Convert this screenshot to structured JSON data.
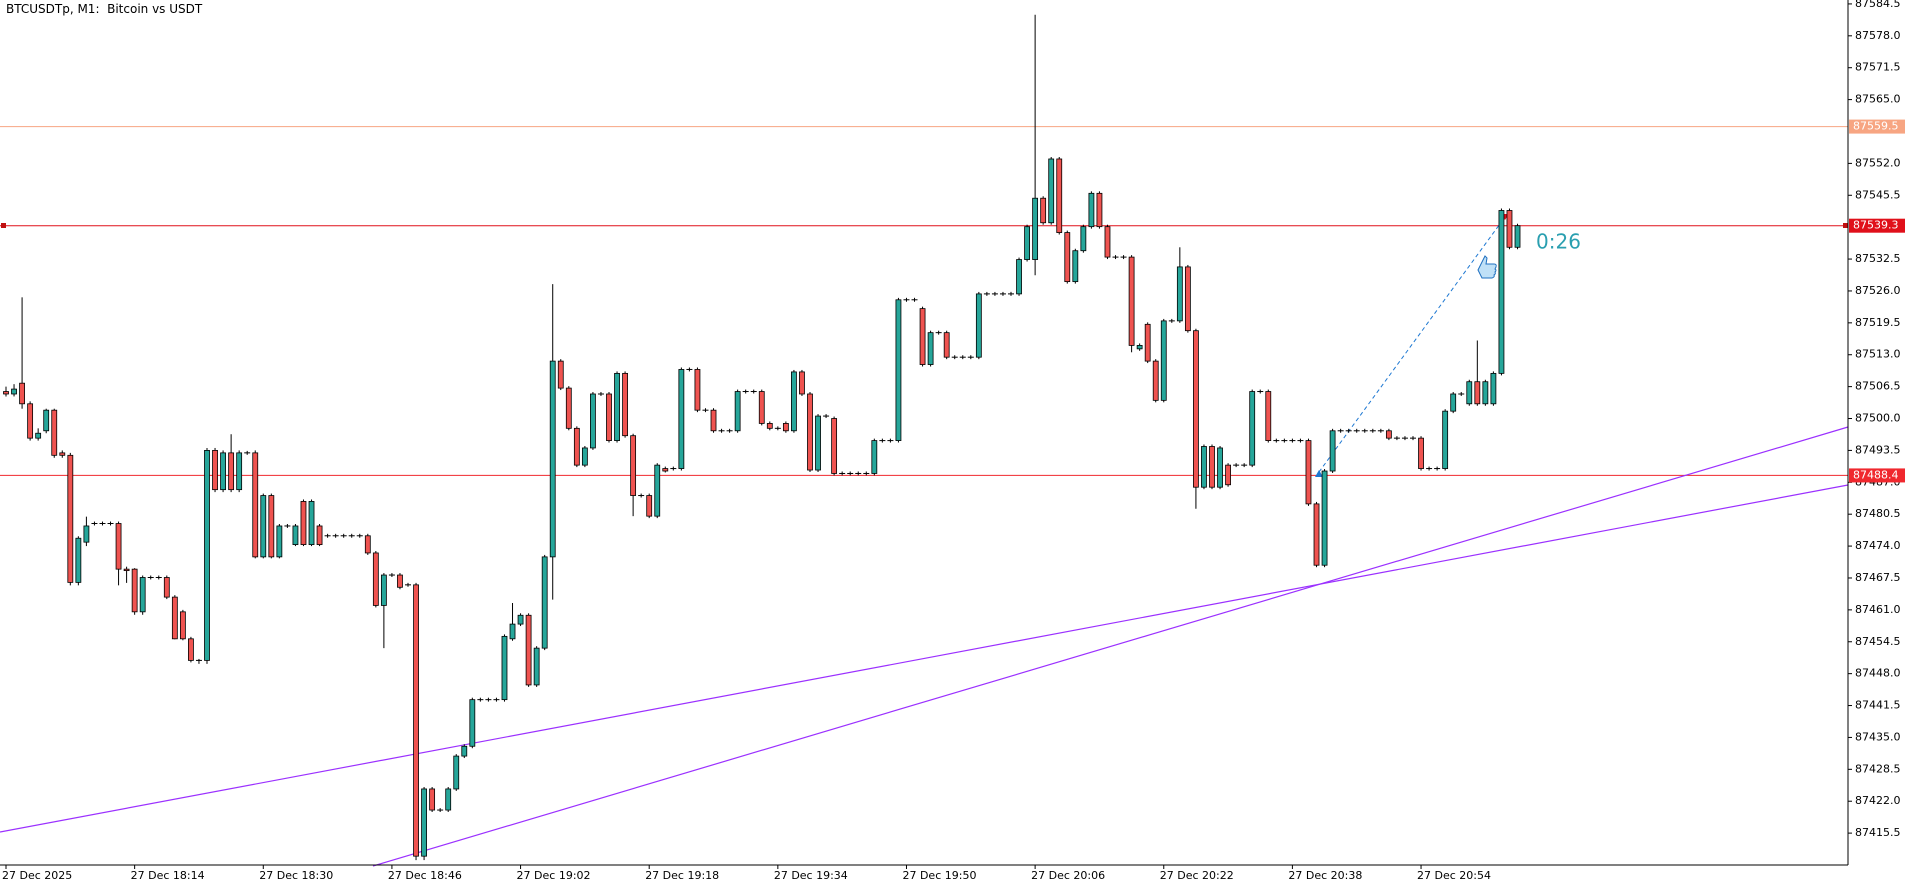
{
  "chart_data": {
    "type": "candlestick",
    "title": "BTCUSDTp, M1:  Bitcoin vs USDT",
    "up_color": "#26a69a",
    "down_color": "#ef5350",
    "countdown": "0:26",
    "ylim": [
      87409.0,
      87585.3
    ],
    "yticks": [
      87584.5,
      {
        "value": 87578.0,
        "label": "87578.0"
      },
      87571.5,
      {
        "value": 87565.0,
        "label": "87565.0"
      },
      {
        "value": 87552.0,
        "label": "87552.0"
      },
      87545.5,
      87532.5,
      {
        "value": 87526.0,
        "label": "87526.0"
      },
      87519.5,
      {
        "value": 87513.0,
        "label": "87513.0"
      },
      87506.5,
      {
        "value": 87500.0,
        "label": "87500.0"
      },
      87493.5,
      {
        "value": 87487.0,
        "label": "87487.0"
      },
      87480.5,
      {
        "value": 87474.0,
        "label": "87474.0"
      },
      87467.5,
      {
        "value": 87461.0,
        "label": "87461.0"
      },
      87454.5,
      {
        "value": 87448.0,
        "label": "87448.0"
      },
      87441.5,
      {
        "value": 87435.0,
        "label": "87435.0"
      },
      87428.5,
      {
        "value": 87422.0,
        "label": "87422.0"
      },
      87415.5
    ],
    "price_lines": [
      {
        "value": 87559.5,
        "color": "#f7a582"
      },
      {
        "value": 87539.3,
        "color": "#e0101a"
      },
      {
        "value": 87488.4,
        "color": "#f0282e"
      }
    ],
    "categories": [
      "27 Dec 2025",
      null,
      null,
      null,
      null,
      null,
      null,
      null,
      null,
      null,
      null,
      null,
      null,
      null,
      null,
      null,
      "27 Dec 18:14",
      null,
      null,
      null,
      null,
      null,
      null,
      null,
      null,
      null,
      null,
      null,
      null,
      null,
      null,
      null,
      "27 Dec 18:30",
      null,
      null,
      null,
      null,
      null,
      null,
      null,
      null,
      null,
      null,
      null,
      null,
      null,
      null,
      null,
      "27 Dec 18:46",
      null,
      null,
      null,
      null,
      null,
      null,
      null,
      null,
      null,
      null,
      null,
      null,
      null,
      null,
      null,
      "27 Dec 19:02",
      null,
      null,
      null,
      null,
      null,
      null,
      null,
      null,
      null,
      null,
      null,
      null,
      null,
      null,
      null,
      "27 Dec 19:18",
      null,
      null,
      null,
      null,
      null,
      null,
      null,
      null,
      null,
      null,
      null,
      null,
      null,
      null,
      null,
      "27 Dec 19:34",
      null,
      null,
      null,
      null,
      null,
      null,
      null,
      null,
      null,
      null,
      null,
      null,
      null,
      null,
      null,
      "27 Dec 19:50",
      null,
      null,
      null,
      null,
      null,
      null,
      null,
      null,
      null,
      null,
      null,
      null,
      null,
      null,
      null,
      "27 Dec 20:06",
      null,
      null,
      null,
      null,
      null,
      null,
      null,
      null,
      null,
      null,
      null,
      null,
      null,
      null,
      null,
      "27 Dec 20:22",
      null,
      null,
      null,
      null,
      null,
      null,
      null,
      null,
      null,
      null,
      null,
      null,
      null,
      null,
      null,
      "27 Dec 20:38",
      null,
      null,
      null,
      null,
      null,
      null,
      null,
      null,
      null,
      null,
      null,
      null,
      null,
      null,
      null,
      "27 Dec 20:54",
      null,
      null,
      null,
      null,
      null,
      null,
      null,
      null,
      null,
      null,
      null,
      null
    ],
    "values": [
      [
        87505.5,
        87506.5,
        87504.5,
        87505.0
      ],
      [
        87505.0,
        87507.0,
        87504.5,
        87506.0
      ],
      [
        87507.2,
        87524.7,
        87502.0,
        87503.0
      ],
      [
        87503.0,
        87503.5,
        87495.5,
        87496.0
      ],
      [
        87496.0,
        87498.0,
        87495.5,
        87497.0
      ],
      [
        87497.5,
        87502.0,
        87497.0,
        87501.7
      ],
      [
        87501.7,
        87502.0,
        87492.0,
        87492.5
      ],
      [
        87493.0,
        87493.5,
        87492.0,
        87492.5
      ],
      [
        87492.5,
        87493.0,
        87466.0,
        87466.6
      ],
      [
        87466.6,
        87476.0,
        87466.0,
        87475.6
      ],
      [
        87474.8,
        87480.0,
        87474.0,
        87478.1
      ],
      [
        87478.6,
        87479.0,
        87478.2,
        87478.6
      ],
      [
        87478.6,
        87479.0,
        87478.2,
        87478.6
      ],
      [
        87478.6,
        87479.0,
        87478.2,
        87478.6
      ],
      [
        87478.6,
        87479.0,
        87466.0,
        87469.3
      ],
      [
        87469.3,
        87469.8,
        87466.5,
        87469.0
      ],
      [
        87469.3,
        87469.5,
        87460.0,
        87460.6
      ],
      [
        87460.6,
        87468.0,
        87460.0,
        87467.6
      ],
      [
        87467.6,
        87468.0,
        87467.2,
        87467.6
      ],
      [
        87467.6,
        87468.0,
        87467.2,
        87467.6
      ],
      [
        87467.6,
        87468.0,
        87463.2,
        87463.6
      ],
      [
        87463.6,
        87464.0,
        87455.0,
        87455.1
      ],
      [
        87460.6,
        87461.0,
        87454.8,
        87455.1
      ],
      [
        87455.1,
        87455.5,
        87450.3,
        87450.7
      ],
      [
        87450.7,
        87451.0,
        87450.0,
        87450.7
      ],
      [
        87450.7,
        87494.0,
        87450.0,
        87493.5
      ],
      [
        87493.5,
        87494.0,
        87485.0,
        87485.5
      ],
      [
        87485.5,
        87493.5,
        87485.0,
        87493.0
      ],
      [
        87493.0,
        87496.8,
        87485.0,
        87485.5
      ],
      [
        87485.5,
        87493.5,
        87485.0,
        87493.0
      ],
      [
        87493.0,
        87493.4,
        87492.6,
        87493.0
      ],
      [
        87493.0,
        87493.5,
        87471.5,
        87471.8
      ],
      [
        87471.8,
        87484.7,
        87471.5,
        87484.3
      ],
      [
        87484.3,
        87484.7,
        87471.5,
        87471.8
      ],
      [
        87471.8,
        87478.5,
        87471.5,
        87478.1
      ],
      [
        87478.1,
        87478.5,
        87477.7,
        87478.1
      ],
      [
        87474.3,
        87478.5,
        87474.0,
        87478.1
      ],
      [
        87483.1,
        87483.5,
        87474.0,
        87474.3
      ],
      [
        87474.3,
        87483.5,
        87474.0,
        87483.1
      ],
      [
        87478.1,
        87478.5,
        87474.0,
        87474.3
      ],
      [
        87476.1,
        87476.5,
        87475.7,
        87476.1
      ],
      [
        87476.1,
        87476.5,
        87475.7,
        87476.1
      ],
      [
        87476.1,
        87476.5,
        87475.7,
        87476.1
      ],
      [
        87476.1,
        87476.5,
        87475.7,
        87476.1
      ],
      [
        87476.1,
        87476.5,
        87475.7,
        87476.1
      ],
      [
        87476.1,
        87476.5,
        87472.2,
        87472.6
      ],
      [
        87472.6,
        87473.0,
        87461.5,
        87461.9
      ],
      [
        87461.9,
        87468.5,
        87453.2,
        87468.1
      ],
      [
        87468.1,
        87468.5,
        87467.7,
        87468.1
      ],
      [
        87468.1,
        87468.5,
        87465.2,
        87465.6
      ],
      [
        87466.1,
        87466.5,
        87465.7,
        87466.1
      ],
      [
        87466.1,
        87466.5,
        87410.0,
        87410.8
      ],
      [
        87410.8,
        87424.9,
        87410.0,
        87424.5
      ],
      [
        87424.5,
        87424.9,
        87419.8,
        87420.2
      ],
      [
        87420.2,
        87420.6,
        87419.8,
        87420.2
      ],
      [
        87420.2,
        87424.9,
        87419.8,
        87424.5
      ],
      [
        87424.5,
        87431.6,
        87424.1,
        87431.2
      ],
      [
        87431.2,
        87433.6,
        87430.8,
        87433.2
      ],
      [
        87433.2,
        87443.1,
        87432.8,
        87442.7
      ],
      [
        87442.7,
        87443.1,
        87442.3,
        87442.7
      ],
      [
        87442.7,
        87443.1,
        87442.3,
        87442.7
      ],
      [
        87442.7,
        87443.1,
        87442.3,
        87442.7
      ],
      [
        87442.7,
        87456.0,
        87442.3,
        87455.6
      ],
      [
        87455.1,
        87462.4,
        87454.7,
        87458.1
      ],
      [
        87458.1,
        87460.3,
        87457.7,
        87459.9
      ],
      [
        87459.9,
        87460.3,
        87445.3,
        87445.7
      ],
      [
        87445.7,
        87453.6,
        87445.3,
        87453.2
      ],
      [
        87453.2,
        87472.2,
        87452.8,
        87471.8
      ],
      [
        87471.8,
        87527.4,
        87463.1,
        87511.7
      ],
      [
        87511.7,
        87512.1,
        87505.8,
        87506.2
      ],
      [
        87506.2,
        87506.6,
        87497.6,
        87498.0
      ],
      [
        87498.0,
        87498.4,
        87490.1,
        87490.5
      ],
      [
        87490.5,
        87494.4,
        87490.1,
        87494.0
      ],
      [
        87494.0,
        87505.4,
        87493.6,
        87505.0
      ],
      [
        87505.0,
        87505.4,
        87504.6,
        87505.0
      ],
      [
        87505.0,
        87505.4,
        87495.1,
        87495.5
      ],
      [
        87495.5,
        87509.6,
        87495.1,
        87509.2
      ],
      [
        87509.2,
        87509.6,
        87496.1,
        87496.5
      ],
      [
        87496.5,
        87496.9,
        87480.1,
        87484.3
      ],
      [
        87484.3,
        87484.7,
        87483.9,
        87484.3
      ],
      [
        87484.3,
        87484.7,
        87479.7,
        87480.1
      ],
      [
        87480.1,
        87490.9,
        87479.7,
        87490.5
      ],
      [
        87489.8,
        87490.2,
        87489.0,
        87489.3
      ],
      [
        87489.8,
        87490.2,
        87489.4,
        87489.8
      ],
      [
        87489.8,
        87510.4,
        87489.4,
        87510.0
      ],
      [
        87510.0,
        87510.4,
        87509.6,
        87510.0
      ],
      [
        87510.0,
        87510.4,
        87501.3,
        87501.7
      ],
      [
        87501.7,
        87502.1,
        87501.3,
        87501.7
      ],
      [
        87501.7,
        87502.1,
        87497.1,
        87497.5
      ],
      [
        87497.5,
        87497.9,
        87497.1,
        87497.5
      ],
      [
        87497.5,
        87497.9,
        87497.1,
        87497.5
      ],
      [
        87497.5,
        87505.9,
        87497.1,
        87505.5
      ],
      [
        87505.5,
        87505.9,
        87505.1,
        87505.5
      ],
      [
        87505.5,
        87505.9,
        87505.1,
        87505.5
      ],
      [
        87505.5,
        87505.9,
        87498.6,
        87499.0
      ],
      [
        87499.0,
        87499.4,
        87497.6,
        87498.0
      ],
      [
        87498.0,
        87498.4,
        87497.6,
        87498.0
      ],
      [
        87499.0,
        87499.4,
        87497.1,
        87497.5
      ],
      [
        87497.5,
        87509.9,
        87497.1,
        87509.5
      ],
      [
        87509.5,
        87509.9,
        87504.6,
        87505.0
      ],
      [
        87505.0,
        87505.4,
        87489.1,
        87489.5
      ],
      [
        87489.5,
        87500.9,
        87489.1,
        87500.5
      ],
      [
        87500.5,
        87500.9,
        87500.1,
        87500.5
      ],
      [
        87500.0,
        87500.4,
        87488.4,
        87488.8
      ],
      [
        87488.8,
        87489.2,
        87488.4,
        87488.8
      ],
      [
        87488.8,
        87489.2,
        87488.4,
        87488.8
      ],
      [
        87488.8,
        87489.2,
        87488.4,
        87488.8
      ],
      [
        87488.8,
        87489.2,
        87488.4,
        87488.8
      ],
      [
        87488.8,
        87495.9,
        87488.4,
        87495.5
      ],
      [
        87495.5,
        87495.9,
        87495.1,
        87495.5
      ],
      [
        87495.5,
        87495.9,
        87495.1,
        87495.5
      ],
      [
        87495.5,
        87524.6,
        87495.1,
        87524.2
      ],
      [
        87524.2,
        87524.6,
        87523.8,
        87524.2
      ],
      [
        87524.2,
        87524.6,
        87523.8,
        87524.2
      ],
      [
        87522.4,
        87522.8,
        87510.6,
        87511.0
      ],
      [
        87511.0,
        87517.9,
        87510.6,
        87517.5
      ],
      [
        87517.5,
        87517.9,
        87517.1,
        87517.5
      ],
      [
        87517.5,
        87517.9,
        87512.1,
        87512.5
      ],
      [
        87512.5,
        87512.9,
        87512.1,
        87512.5
      ],
      [
        87512.5,
        87512.9,
        87512.1,
        87512.5
      ],
      [
        87512.5,
        87512.9,
        87512.1,
        87512.5
      ],
      [
        87512.5,
        87525.8,
        87512.1,
        87525.4
      ],
      [
        87525.4,
        87525.8,
        87525.0,
        87525.4
      ],
      [
        87525.4,
        87525.8,
        87525.0,
        87525.4
      ],
      [
        87525.4,
        87525.8,
        87525.0,
        87525.4
      ],
      [
        87525.4,
        87525.8,
        87525.0,
        87525.4
      ],
      [
        87525.4,
        87532.8,
        87525.0,
        87532.4
      ],
      [
        87532.4,
        87539.5,
        87532.0,
        87539.1
      ],
      [
        87532.4,
        87582.3,
        87529.2,
        87544.9
      ],
      [
        87544.9,
        87545.3,
        87539.5,
        87539.9
      ],
      [
        87539.9,
        87553.3,
        87539.5,
        87552.9
      ],
      [
        87552.9,
        87553.3,
        87537.5,
        87537.9
      ],
      [
        87537.9,
        87538.3,
        87527.5,
        87527.9
      ],
      [
        87527.9,
        87534.6,
        87527.5,
        87534.2
      ],
      [
        87534.2,
        87539.5,
        87533.8,
        87539.1
      ],
      [
        87539.1,
        87546.3,
        87538.7,
        87545.9
      ],
      [
        87545.9,
        87546.3,
        87538.7,
        87539.1
      ],
      [
        87539.1,
        87539.5,
        87532.5,
        87532.9
      ],
      [
        87532.9,
        87533.3,
        87532.5,
        87532.9
      ],
      [
        87532.9,
        87533.3,
        87532.5,
        87532.9
      ],
      [
        87532.9,
        87533.3,
        87513.5,
        87514.9
      ],
      [
        87514.2,
        87515.3,
        87513.8,
        87514.9
      ],
      [
        87519.2,
        87519.6,
        87511.3,
        87511.7
      ],
      [
        87511.7,
        87512.1,
        87503.3,
        87503.7
      ],
      [
        87503.7,
        87520.3,
        87503.3,
        87519.9
      ],
      [
        87519.9,
        87520.3,
        87519.5,
        87519.9
      ],
      [
        87519.9,
        87534.9,
        87519.5,
        87530.9
      ],
      [
        87530.9,
        87531.3,
        87517.5,
        87517.9
      ],
      [
        87517.9,
        87518.3,
        87481.6,
        87486.0
      ],
      [
        87486.0,
        87494.7,
        87485.6,
        87494.3
      ],
      [
        87494.3,
        87494.7,
        87485.6,
        87486.0
      ],
      [
        87486.0,
        87494.4,
        87485.6,
        87494.0
      ],
      [
        87490.5,
        87490.9,
        87486.1,
        87486.5
      ],
      [
        87490.5,
        87490.9,
        87490.1,
        87490.5
      ],
      [
        87490.5,
        87490.9,
        87490.1,
        87490.5
      ],
      [
        87490.5,
        87505.9,
        87490.1,
        87505.5
      ],
      [
        87505.5,
        87505.9,
        87505.1,
        87505.5
      ],
      [
        87505.5,
        87505.9,
        87495.1,
        87495.5
      ],
      [
        87495.5,
        87495.9,
        87495.1,
        87495.5
      ],
      [
        87495.5,
        87495.9,
        87495.1,
        87495.5
      ],
      [
        87495.5,
        87495.9,
        87495.1,
        87495.5
      ],
      [
        87495.5,
        87495.9,
        87495.1,
        87495.5
      ],
      [
        87495.5,
        87495.9,
        87482.2,
        87482.6
      ],
      [
        87482.6,
        87483.0,
        87469.7,
        87470.1
      ],
      [
        87470.1,
        87489.7,
        87469.7,
        87489.3
      ],
      [
        87489.3,
        87497.9,
        87488.9,
        87497.5
      ],
      [
        87497.5,
        87497.9,
        87497.1,
        87497.5
      ],
      [
        87497.5,
        87497.9,
        87497.1,
        87497.5
      ],
      [
        87497.5,
        87497.9,
        87497.1,
        87497.5
      ],
      [
        87497.5,
        87497.9,
        87497.1,
        87497.5
      ],
      [
        87497.5,
        87497.9,
        87497.1,
        87497.5
      ],
      [
        87497.5,
        87497.9,
        87497.1,
        87497.5
      ],
      [
        87497.5,
        87497.9,
        87495.6,
        87496.0
      ],
      [
        87496.0,
        87496.4,
        87495.6,
        87496.0
      ],
      [
        87496.0,
        87496.4,
        87495.6,
        87496.0
      ],
      [
        87496.0,
        87496.4,
        87495.6,
        87496.0
      ],
      [
        87496.0,
        87496.4,
        87489.4,
        87489.8
      ],
      [
        87489.8,
        87490.2,
        87489.4,
        87489.8
      ],
      [
        87489.8,
        87490.2,
        87489.4,
        87489.8
      ],
      [
        87489.8,
        87501.9,
        87489.4,
        87501.5
      ],
      [
        87501.5,
        87505.4,
        87501.1,
        87505.0
      ],
      [
        87505.0,
        87505.4,
        87504.6,
        87505.0
      ],
      [
        87503.0,
        87507.9,
        87502.6,
        87507.5
      ],
      [
        87507.5,
        87515.9,
        87502.6,
        87503.0
      ],
      [
        87503.0,
        87507.9,
        87502.6,
        87507.5
      ],
      [
        87503.0,
        87509.6,
        87502.6,
        87509.2
      ],
      [
        87509.2,
        87542.8,
        87508.8,
        87542.4
      ],
      [
        87542.4,
        87542.8,
        87534.5,
        87534.9
      ],
      [
        87534.9,
        87539.7,
        87534.5,
        87539.3
      ]
    ]
  }
}
